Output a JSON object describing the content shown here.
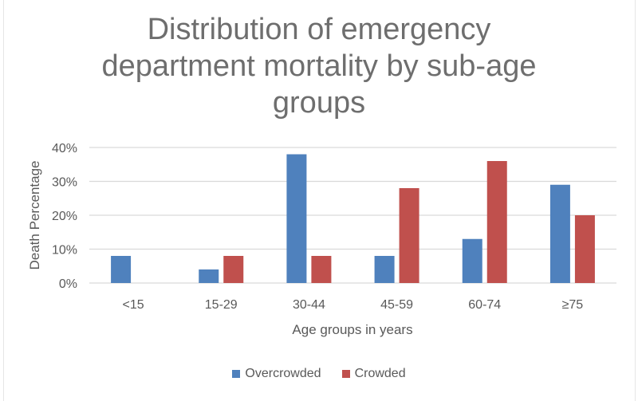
{
  "chart_data": {
    "type": "bar",
    "title_lines": [
      "Distribution of emergency",
      "department mortality by sub-age",
      "groups"
    ],
    "title": "Distribution of emergency department mortality by sub-age groups",
    "xlabel": "Age groups in years",
    "ylabel": "Death Percentage",
    "categories": [
      "<15",
      "15-29",
      "30-44",
      "45-59",
      "60-74",
      "≥75"
    ],
    "series": [
      {
        "name": "Overcrowded",
        "color": "#4f81bd",
        "values": [
          8,
          4,
          38,
          8,
          13,
          29
        ]
      },
      {
        "name": "Crowded",
        "color": "#c0504d",
        "values": [
          0,
          8,
          8,
          28,
          36,
          20
        ]
      }
    ],
    "ylim": [
      0,
      40
    ],
    "yticks": [
      0,
      10,
      20,
      30,
      40
    ],
    "ytick_labels": [
      "0%",
      "10%",
      "20%",
      "30%",
      "40%"
    ],
    "grid": true,
    "legend_position": "bottom"
  }
}
